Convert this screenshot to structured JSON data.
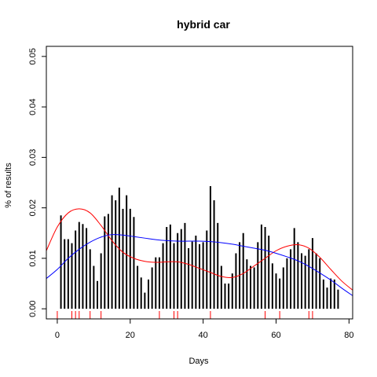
{
  "chart_data": {
    "type": "bar",
    "title": "hybrid car",
    "xlabel": "Days",
    "ylabel": "% of results",
    "xlim": [
      -3,
      81
    ],
    "ylim": [
      -0.002,
      0.052
    ],
    "x_ticks": [
      0,
      20,
      40,
      60,
      80
    ],
    "y_ticks": [
      0.0,
      0.01,
      0.02,
      0.03,
      0.04,
      0.05
    ],
    "y_tick_labels": [
      "0.00",
      "0.01",
      "0.02",
      "0.03",
      "0.04",
      "0.05"
    ],
    "bar_color": "#000000",
    "x": [
      1,
      2,
      3,
      4,
      5,
      6,
      7,
      8,
      9,
      10,
      11,
      12,
      13,
      14,
      15,
      16,
      17,
      18,
      19,
      20,
      21,
      22,
      23,
      24,
      25,
      26,
      27,
      28,
      29,
      30,
      31,
      32,
      33,
      34,
      35,
      36,
      37,
      38,
      39,
      40,
      41,
      42,
      43,
      44,
      45,
      46,
      47,
      48,
      49,
      50,
      51,
      52,
      53,
      54,
      55,
      56,
      57,
      58,
      59,
      60,
      61,
      62,
      63,
      64,
      65,
      66,
      67,
      68,
      69,
      70,
      71,
      72,
      73,
      74,
      75,
      76,
      77
    ],
    "values": [
      0.0185,
      0.0138,
      0.0138,
      0.013,
      0.0155,
      0.0172,
      0.0168,
      0.016,
      0.0118,
      0.0085,
      0.0055,
      0.011,
      0.0183,
      0.0188,
      0.0225,
      0.0215,
      0.024,
      0.0198,
      0.0225,
      0.0198,
      0.0182,
      0.0085,
      0.0062,
      0.0032,
      0.0058,
      0.0082,
      0.0102,
      0.0102,
      0.013,
      0.0162,
      0.0167,
      0.013,
      0.015,
      0.0158,
      0.017,
      0.012,
      0.0133,
      0.0145,
      0.0128,
      0.0132,
      0.0155,
      0.0243,
      0.0215,
      0.017,
      0.0085,
      0.005,
      0.005,
      0.007,
      0.011,
      0.0132,
      0.015,
      0.0098,
      0.0085,
      0.0082,
      0.0132,
      0.0167,
      0.0162,
      0.0145,
      0.009,
      0.007,
      0.006,
      0.0082,
      0.01,
      0.0118,
      0.016,
      0.0132,
      0.011,
      0.0105,
      0.0118,
      0.014,
      0.011,
      0.01,
      0.0058,
      0.0042,
      0.006,
      0.0058,
      0.0038
    ],
    "rug": {
      "color": "#ff0000",
      "x": [
        0,
        4,
        5,
        6,
        9,
        12,
        28,
        32,
        33,
        42,
        57,
        61,
        69,
        70
      ]
    },
    "smooth_lines": [
      {
        "color": "#ff0000",
        "x": [
          -3,
          0,
          3,
          6,
          9,
          12,
          15,
          18,
          21,
          24,
          27,
          30,
          33,
          36,
          39,
          42,
          45,
          48,
          51,
          54,
          57,
          60,
          63,
          66,
          69,
          72,
          75,
          78,
          81
        ],
        "y": [
          0.0115,
          0.0162,
          0.019,
          0.0198,
          0.019,
          0.0165,
          0.0135,
          0.0112,
          0.01,
          0.0094,
          0.0092,
          0.0093,
          0.0093,
          0.0088,
          0.008,
          0.0072,
          0.0064,
          0.0062,
          0.007,
          0.0085,
          0.01,
          0.0115,
          0.0124,
          0.0127,
          0.012,
          0.0102,
          0.0078,
          0.0055,
          0.0037
        ]
      },
      {
        "color": "#0000ff",
        "x": [
          -3,
          0,
          3,
          6,
          9,
          12,
          15,
          18,
          21,
          24,
          27,
          30,
          33,
          36,
          39,
          42,
          45,
          48,
          51,
          54,
          57,
          60,
          63,
          66,
          69,
          72,
          75,
          78,
          81
        ],
        "y": [
          0.006,
          0.0078,
          0.01,
          0.0118,
          0.0132,
          0.0142,
          0.0147,
          0.0146,
          0.0143,
          0.014,
          0.0137,
          0.0135,
          0.0134,
          0.0134,
          0.0134,
          0.0133,
          0.0131,
          0.0128,
          0.0124,
          0.012,
          0.0116,
          0.011,
          0.0103,
          0.0095,
          0.0084,
          0.0071,
          0.0057,
          0.0041,
          0.0026
        ]
      }
    ],
    "grid": false,
    "legend": "none"
  }
}
